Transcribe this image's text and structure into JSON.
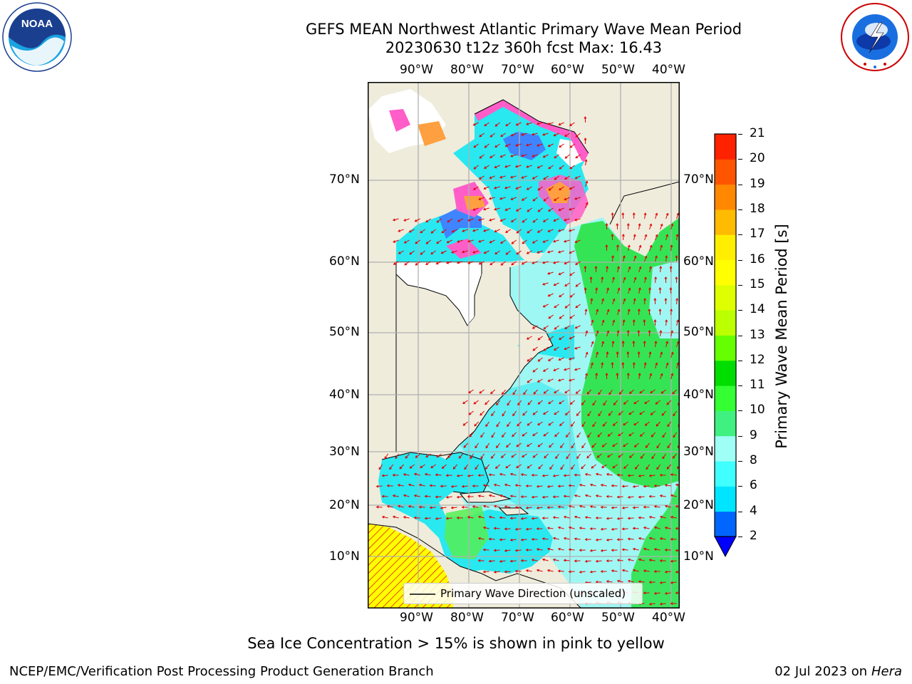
{
  "title": {
    "line1": "GEFS MEAN Northwest Atlantic Primary Wave Mean Period",
    "line2": "20230630 t12z 360h fcst   Max: 16.43"
  },
  "logos": {
    "noara_text": "NOAA",
    "noaa_ring": "NATIONAL OCEANIC AND ATMOSPHERIC ADMINISTRATION · U.S. DEPARTMENT OF COMMERCE",
    "nws_ring": "NATIONAL WEATHER SERVICE"
  },
  "map": {
    "lon_labels": [
      "90°W",
      "80°W",
      "70°W",
      "60°W",
      "50°W",
      "40°W"
    ],
    "lat_labels": [
      "70°N",
      "60°N",
      "50°N",
      "40°N",
      "30°N",
      "20°N",
      "10°N"
    ],
    "legend_label": "Primary Wave Direction (unscaled)",
    "colors": {
      "land": "#efecdc",
      "ocean_light": "#9ff7f3",
      "ocean_cyan": "#29e8f0",
      "wave_green": "#12dd20",
      "arrow": "#e00000",
      "ice_pink": "#ff5ec8",
      "ice_orange": "#ffa040",
      "ice_yellow": "#ffff00"
    }
  },
  "colorbar": {
    "label": "Primary Wave Mean Period [s]",
    "ticks": [
      "2",
      "4",
      "6",
      "8",
      "9",
      "10",
      "11",
      "12",
      "13",
      "14",
      "15",
      "16",
      "17",
      "18",
      "19",
      "20",
      "21"
    ],
    "colors": [
      "#0066ff",
      "#00e5ff",
      "#40ffff",
      "#9ffff7",
      "#40f080",
      "#33ff33",
      "#00dd00",
      "#66ff00",
      "#bbff00",
      "#ddff00",
      "#ffff00",
      "#ffee00",
      "#ffbb00",
      "#ff8800",
      "#ff5500",
      "#ff2200",
      "#ff0000"
    ],
    "extend_color": "#0000ff"
  },
  "caption": "Sea Ice Concentration > 15% is shown in pink to yellow",
  "footer": {
    "left": "NCEP/EMC/Verification Post Processing Product Generation Branch",
    "right_date": "02 Jul 2023 on ",
    "right_host": "Hera"
  }
}
